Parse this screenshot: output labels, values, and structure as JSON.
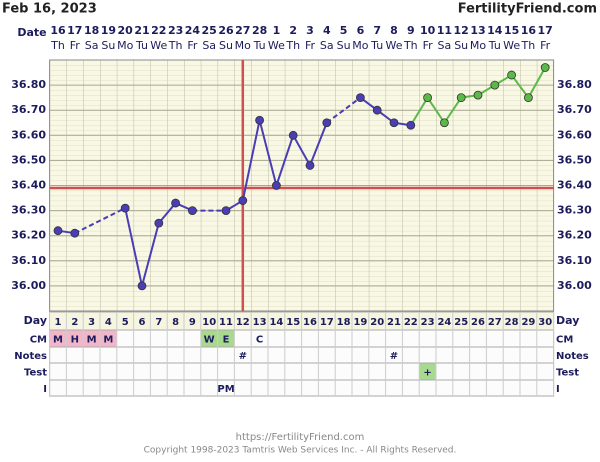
{
  "header": {
    "date": "Feb 16, 2023",
    "site": "FertilityFriend.com"
  },
  "chart_data": {
    "type": "line",
    "date_label": "Date",
    "dates": [
      "16",
      "17",
      "18",
      "19",
      "20",
      "21",
      "22",
      "23",
      "24",
      "25",
      "26",
      "27",
      "28",
      "1",
      "2",
      "3",
      "4",
      "5",
      "6",
      "7",
      "8",
      "9",
      "10",
      "11",
      "12",
      "13",
      "14",
      "15",
      "16",
      "17"
    ],
    "weekdays": [
      "Th",
      "Fr",
      "Sa",
      "Su",
      "Mo",
      "Tu",
      "We",
      "Th",
      "Fr",
      "Sa",
      "Su",
      "Mo",
      "Tu",
      "We",
      "Th",
      "Fr",
      "Sa",
      "Su",
      "Mo",
      "Tu",
      "We",
      "Th",
      "Fr",
      "Sa",
      "Su",
      "Mo",
      "Tu",
      "We",
      "Th",
      "Fr"
    ],
    "categories": [
      1,
      2,
      3,
      4,
      5,
      6,
      7,
      8,
      9,
      10,
      11,
      12,
      13,
      14,
      15,
      16,
      17,
      18,
      19,
      20,
      21,
      22,
      23,
      24,
      25,
      26,
      27,
      28,
      29,
      30
    ],
    "series": [
      {
        "color": "#4a3db5",
        "values": [
          36.22,
          36.21,
          null,
          null,
          36.31,
          36.0,
          36.25,
          36.33,
          36.3,
          null,
          36.3,
          36.34,
          36.66,
          36.4,
          36.6,
          36.48,
          36.65,
          null,
          36.75,
          36.7,
          36.65,
          36.64,
          null,
          null,
          null,
          null,
          null,
          null,
          null,
          null
        ]
      },
      {
        "color": "#5cb848",
        "values": [
          null,
          null,
          null,
          null,
          null,
          null,
          null,
          null,
          null,
          null,
          null,
          null,
          null,
          null,
          null,
          null,
          null,
          null,
          null,
          null,
          null,
          null,
          36.75,
          36.65,
          36.75,
          36.76,
          36.8,
          36.84,
          36.75,
          36.87
        ]
      }
    ],
    "ylim": [
      35.9,
      36.9
    ],
    "yticks": [
      {
        "value": 36.0,
        "label": "36.00"
      },
      {
        "value": 36.1,
        "label": "36.10"
      },
      {
        "value": 36.2,
        "label": "36.20"
      },
      {
        "value": 36.3,
        "label": "36.30"
      },
      {
        "value": 36.4,
        "label": "36.40"
      },
      {
        "value": 36.5,
        "label": "36.50"
      },
      {
        "value": 36.6,
        "label": "36.60"
      },
      {
        "value": 36.7,
        "label": "36.70"
      },
      {
        "value": 36.8,
        "label": "36.80"
      }
    ],
    "coverline": 36.39,
    "ovulation_day": 12,
    "marker_line_color": "#d05050",
    "grid": true
  },
  "table": {
    "day_label": "Day",
    "rows": [
      {
        "label": "CM",
        "cells": [
          {
            "day": 1,
            "text": "M",
            "color": "#f2b6c9"
          },
          {
            "day": 2,
            "text": "H",
            "color": "#f2b6c9"
          },
          {
            "day": 3,
            "text": "M",
            "color": "#f2b6c9"
          },
          {
            "day": 4,
            "text": "M",
            "color": "#f2b6c9"
          },
          {
            "day": 10,
            "text": "W",
            "color": "#a9d98f"
          },
          {
            "day": 11,
            "text": "E",
            "color": "#a9d98f"
          },
          {
            "day": 13,
            "text": "C"
          }
        ]
      },
      {
        "label": "Notes",
        "cells": [
          {
            "day": 12,
            "text": "#"
          },
          {
            "day": 21,
            "text": "#"
          }
        ]
      },
      {
        "label": "Test",
        "cells": [
          {
            "day": 23,
            "text": "+",
            "color": "#a9d98f"
          }
        ]
      },
      {
        "label": "I",
        "cells": [
          {
            "day": 11,
            "text": "PM"
          }
        ]
      }
    ]
  },
  "footer": {
    "url": "https://FertilityFriend.com",
    "copyright": "Copyright 1998-2023 Tamtris Web Services Inc. - All Rights Reserved."
  }
}
